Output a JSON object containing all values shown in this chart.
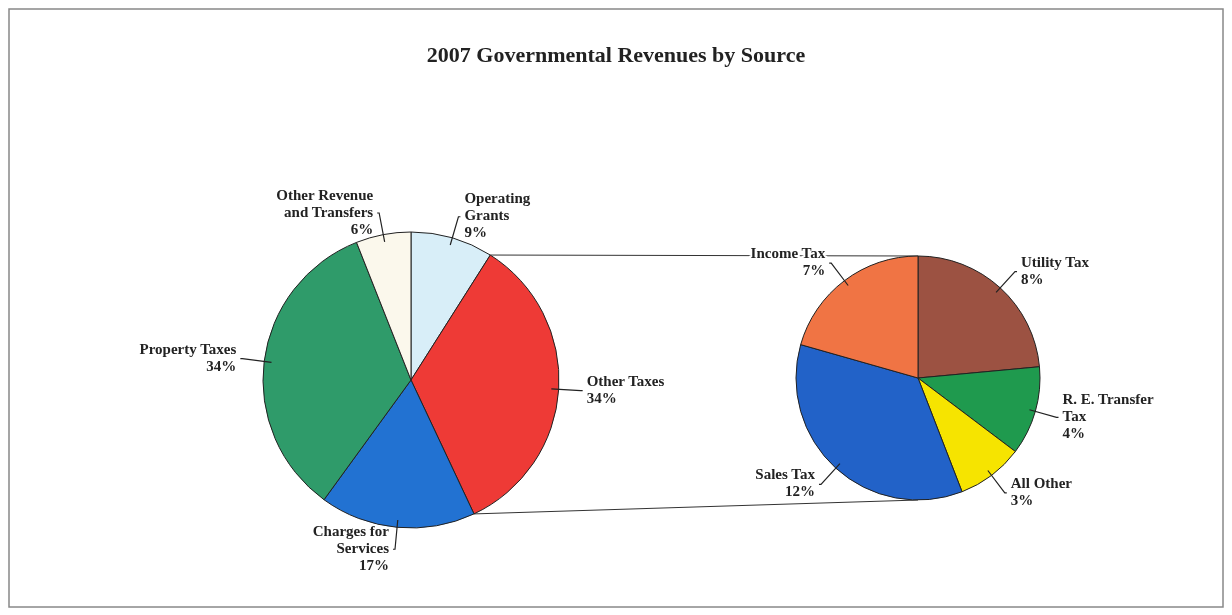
{
  "chart_data": [
    {
      "type": "pie",
      "title": "2007 Governmental Revenues by Source",
      "categories": [
        "Operating Grants",
        "Other Taxes",
        "Charges for Services",
        "Property Taxes",
        "Other Revenue and Transfers"
      ],
      "values": [
        9,
        34,
        17,
        34,
        6
      ],
      "value_labels": [
        "9%",
        "34%",
        "17%",
        "34%",
        "6%"
      ],
      "colors": [
        "#d8eef8",
        "#ee3a36",
        "#2272d2",
        "#2f9b6a",
        "#fbf8ec"
      ]
    },
    {
      "type": "pie",
      "categories": [
        "Utility Tax",
        "R. E. Transfer Tax",
        "All Other",
        "Sales Tax",
        "Income Tax"
      ],
      "values": [
        8,
        4,
        3,
        12,
        7
      ],
      "value_labels": [
        "8%",
        "4%",
        "3%",
        "12%",
        "7%"
      ],
      "colors": [
        "#9c5242",
        "#1f9a4e",
        "#f6e400",
        "#2262c8",
        "#f07444"
      ]
    }
  ]
}
